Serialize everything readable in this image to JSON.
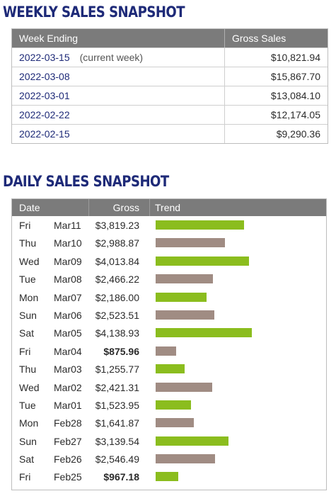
{
  "weekly": {
    "title": "WEEKLY SALES SNAPSHOT",
    "headers": {
      "week_ending": "Week Ending",
      "gross_sales": "Gross Sales"
    },
    "rows": [
      {
        "week": "2022-03-15",
        "note": "(current week)",
        "gross": "$10,821.94"
      },
      {
        "week": "2022-03-08",
        "note": "",
        "gross": "$15,867.70"
      },
      {
        "week": "2022-03-01",
        "note": "",
        "gross": "$13,084.10"
      },
      {
        "week": "2022-02-22",
        "note": "",
        "gross": "$12,174.05"
      },
      {
        "week": "2022-02-15",
        "note": "",
        "gross": "$9,290.36"
      }
    ]
  },
  "daily": {
    "title": "DAILY SALES SNAPSHOT",
    "headers": {
      "date": "Date",
      "gross": "Gross",
      "trend": "Trend"
    },
    "trend_max": 4138.93,
    "colors": {
      "above": "#8bbd1e",
      "below": "#a08c83"
    },
    "rows": [
      {
        "dow": "Fri",
        "date": "Mar11",
        "gross": "$3,819.23",
        "amount": 3819.23,
        "color": "above",
        "bold": false
      },
      {
        "dow": "Thu",
        "date": "Mar10",
        "gross": "$2,988.87",
        "amount": 2988.87,
        "color": "below",
        "bold": false
      },
      {
        "dow": "Wed",
        "date": "Mar09",
        "gross": "$4,013.84",
        "amount": 4013.84,
        "color": "above",
        "bold": false
      },
      {
        "dow": "Tue",
        "date": "Mar08",
        "gross": "$2,466.22",
        "amount": 2466.22,
        "color": "below",
        "bold": false
      },
      {
        "dow": "Mon",
        "date": "Mar07",
        "gross": "$2,186.00",
        "amount": 2186.0,
        "color": "above",
        "bold": false
      },
      {
        "dow": "Sun",
        "date": "Mar06",
        "gross": "$2,523.51",
        "amount": 2523.51,
        "color": "below",
        "bold": false
      },
      {
        "dow": "Sat",
        "date": "Mar05",
        "gross": "$4,138.93",
        "amount": 4138.93,
        "color": "above",
        "bold": false
      },
      {
        "dow": "Fri",
        "date": "Mar04",
        "gross": "$875.96",
        "amount": 875.96,
        "color": "below",
        "bold": true
      },
      {
        "dow": "Thu",
        "date": "Mar03",
        "gross": "$1,255.77",
        "amount": 1255.77,
        "color": "above",
        "bold": false
      },
      {
        "dow": "Wed",
        "date": "Mar02",
        "gross": "$2,421.31",
        "amount": 2421.31,
        "color": "below",
        "bold": false
      },
      {
        "dow": "Tue",
        "date": "Mar01",
        "gross": "$1,523.95",
        "amount": 1523.95,
        "color": "above",
        "bold": false
      },
      {
        "dow": "Mon",
        "date": "Feb28",
        "gross": "$1,641.87",
        "amount": 1641.87,
        "color": "below",
        "bold": false
      },
      {
        "dow": "Sun",
        "date": "Feb27",
        "gross": "$3,139.54",
        "amount": 3139.54,
        "color": "above",
        "bold": false
      },
      {
        "dow": "Sat",
        "date": "Feb26",
        "gross": "$2,546.49",
        "amount": 2546.49,
        "color": "below",
        "bold": false
      },
      {
        "dow": "Fri",
        "date": "Feb25",
        "gross": "$967.18",
        "amount": 967.18,
        "color": "above",
        "bold": true
      }
    ]
  }
}
